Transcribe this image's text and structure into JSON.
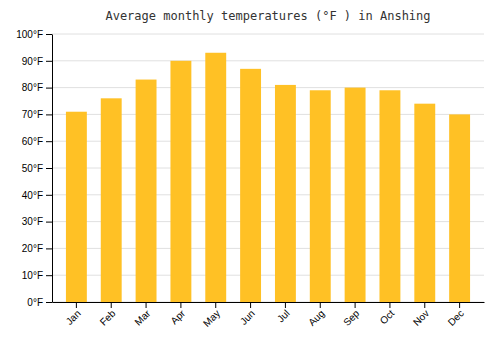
{
  "chart_data": {
    "type": "bar",
    "title": "Average monthly temperatures (°F ) in Anshing",
    "categories": [
      "Jan",
      "Feb",
      "Mar",
      "Apr",
      "May",
      "Jun",
      "Jul",
      "Aug",
      "Sep",
      "Oct",
      "Nov",
      "Dec"
    ],
    "values": [
      71,
      76,
      83,
      90,
      93,
      87,
      81,
      79,
      80,
      79,
      74,
      70
    ],
    "color": "#FFC125",
    "ylim": [
      0,
      100
    ],
    "yticks": [
      {
        "value": 0,
        "label": "0°F"
      },
      {
        "value": 10,
        "label": "10°F"
      },
      {
        "value": 20,
        "label": "20°F"
      },
      {
        "value": 30,
        "label": "30°F"
      },
      {
        "value": 40,
        "label": "40°F"
      },
      {
        "value": 50,
        "label": "50°F"
      },
      {
        "value": 60,
        "label": "60°F"
      },
      {
        "value": 70,
        "label": "70°F"
      },
      {
        "value": 80,
        "label": "80°F"
      },
      {
        "value": 90,
        "label": "90°F"
      },
      {
        "value": 100,
        "label": "100°F"
      }
    ],
    "grid": true
  }
}
